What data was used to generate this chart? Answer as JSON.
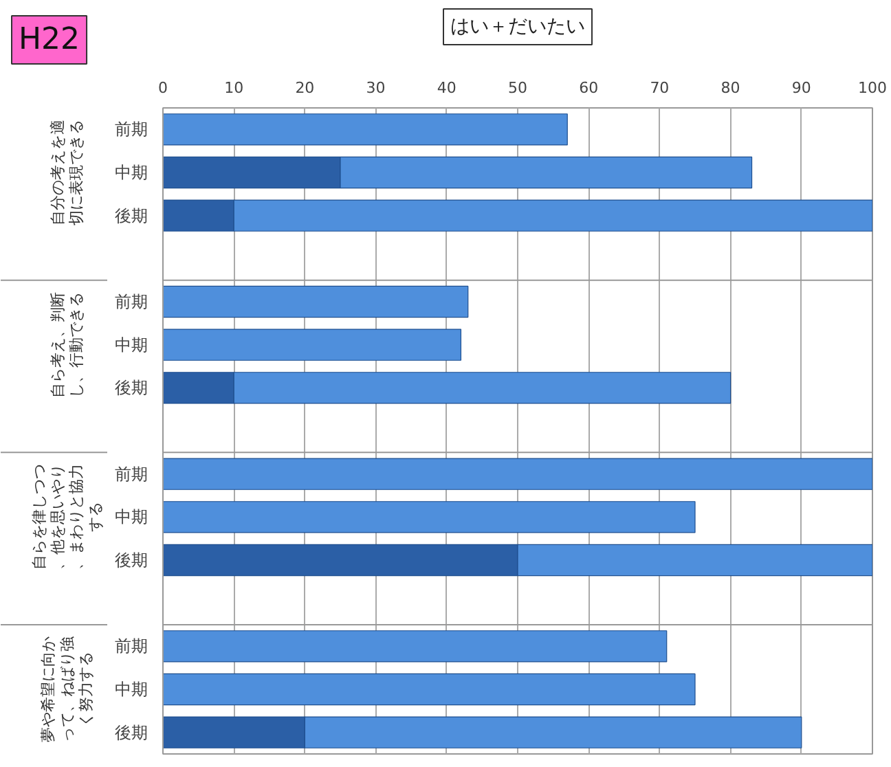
{
  "chart_data": {
    "type": "bar",
    "orientation": "horizontal",
    "stacked": true,
    "title": "はい＋だいたい",
    "subtitle": "H22",
    "categories": [
      "前期",
      "中期",
      "後期",
      null,
      "前期",
      "中期",
      "後期",
      null,
      "前期",
      "中期",
      "後期",
      null,
      "前期",
      "中期",
      "後期"
    ],
    "series": [
      {
        "color": "#2b5fa6",
        "values": [
          0,
          25,
          10,
          null,
          0,
          0,
          10,
          null,
          0,
          0,
          50,
          null,
          0,
          0,
          20
        ]
      },
      {
        "color": "#4f8fdc",
        "values": [
          57,
          58,
          90,
          null,
          43,
          42,
          70,
          null,
          100,
          75,
          50,
          null,
          71,
          75,
          70
        ]
      }
    ],
    "annotations": [
      "自分の考えを適切に表現できる",
      "自ら考え、判断し、行動できる",
      "自らを律しつつ、他を思いやり、まわりと協力する",
      "夢や希望に向かって、ねばり強く努力する"
    ],
    "xlim": [
      0,
      100
    ],
    "xticks": [
      0,
      10,
      20,
      30,
      40,
      50,
      60,
      70,
      80,
      90,
      100
    ],
    "grid": "x"
  }
}
